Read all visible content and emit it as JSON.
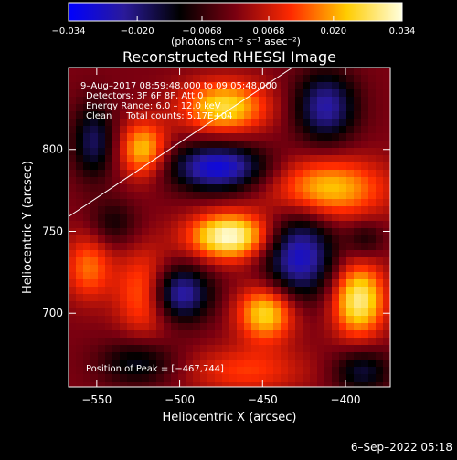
{
  "chart_data": {
    "type": "heatmap",
    "title": "Reconstructed RHESSI Image",
    "xlabel": "Heliocentric X (arcsec)",
    "ylabel": "Heliocentric Y (arcsec)",
    "xlim": [
      -567,
      -373
    ],
    "ylim": [
      655,
      850
    ],
    "xticks": [
      -550,
      -500,
      -450,
      -400
    ],
    "yticks": [
      700,
      750,
      800
    ],
    "xtick_labels": [
      "−550",
      "−500",
      "−450",
      "−400"
    ],
    "ytick_labels": [
      "700",
      "750",
      "800"
    ],
    "colorbar": {
      "range": [
        -0.034,
        0.034
      ],
      "ticks": [
        -0.034,
        -0.02,
        -0.0068,
        0.0068,
        0.02,
        0.034
      ],
      "tick_labels": [
        "−0.034",
        "−0.020",
        "−0.0068",
        "0.0068",
        "0.020",
        "0.034"
      ],
      "unit_label": "(photons cm⁻² s⁻¹ asec⁻²)",
      "colors": [
        "#0000ff",
        "#2a1a9a",
        "#000000",
        "#7a0010",
        "#ff2a00",
        "#ffcc00",
        "#ffffe0"
      ]
    },
    "annotations": {
      "time_range": "9–Aug–2017 08:59:48.000 to 09:05:48.000",
      "detectors": "Detectors: 3F 6F 8F, Att 0",
      "energy": "Energy Range: 6.0 – 12.0 keV",
      "clean": "Clean     Total counts: 5.17E+04",
      "peak": "Position of Peak = [−467,744]"
    },
    "limb_line": [
      [
        -567,
        759
      ],
      [
        -432,
        850
      ]
    ],
    "sources": [
      {
        "x": -470,
        "y": 747,
        "amp": 0.034,
        "sx": 17,
        "sy": 10
      },
      {
        "x": -473,
        "y": 826,
        "amp": 0.026,
        "sx": 18,
        "sy": 11
      },
      {
        "x": -522,
        "y": 800,
        "amp": 0.023,
        "sx": 10,
        "sy": 12
      },
      {
        "x": -410,
        "y": 776,
        "amp": 0.023,
        "sx": 24,
        "sy": 13
      },
      {
        "x": -392,
        "y": 708,
        "amp": 0.03,
        "sx": 11,
        "sy": 16
      },
      {
        "x": -520,
        "y": 712,
        "amp": 0.022,
        "sx": 12,
        "sy": 17
      },
      {
        "x": -448,
        "y": 700,
        "amp": 0.026,
        "sx": 12,
        "sy": 12
      },
      {
        "x": -555,
        "y": 728,
        "amp": 0.016,
        "sx": 10,
        "sy": 14
      },
      {
        "x": -460,
        "y": 665,
        "amp": 0.012,
        "sx": 25,
        "sy": 10
      },
      {
        "x": -477,
        "y": 789,
        "amp": -0.03,
        "sx": 20,
        "sy": 10
      },
      {
        "x": -502,
        "y": 712,
        "amp": -0.029,
        "sx": 14,
        "sy": 12
      },
      {
        "x": -428,
        "y": 735,
        "amp": -0.028,
        "sx": 15,
        "sy": 18
      },
      {
        "x": -412,
        "y": 826,
        "amp": -0.024,
        "sx": 13,
        "sy": 15
      },
      {
        "x": -552,
        "y": 805,
        "amp": -0.018,
        "sx": 9,
        "sy": 16
      },
      {
        "x": -390,
        "y": 665,
        "amp": -0.016,
        "sx": 12,
        "sy": 10
      },
      {
        "x": -525,
        "y": 670,
        "amp": -0.014,
        "sx": 16,
        "sy": 10
      },
      {
        "x": -540,
        "y": 755,
        "amp": -0.01,
        "sx": 10,
        "sy": 10
      },
      {
        "x": -388,
        "y": 745,
        "amp": -0.01,
        "sx": 8,
        "sy": 8
      }
    ]
  },
  "footer": {
    "timestamp": "6–Sep–2022 05:18"
  }
}
